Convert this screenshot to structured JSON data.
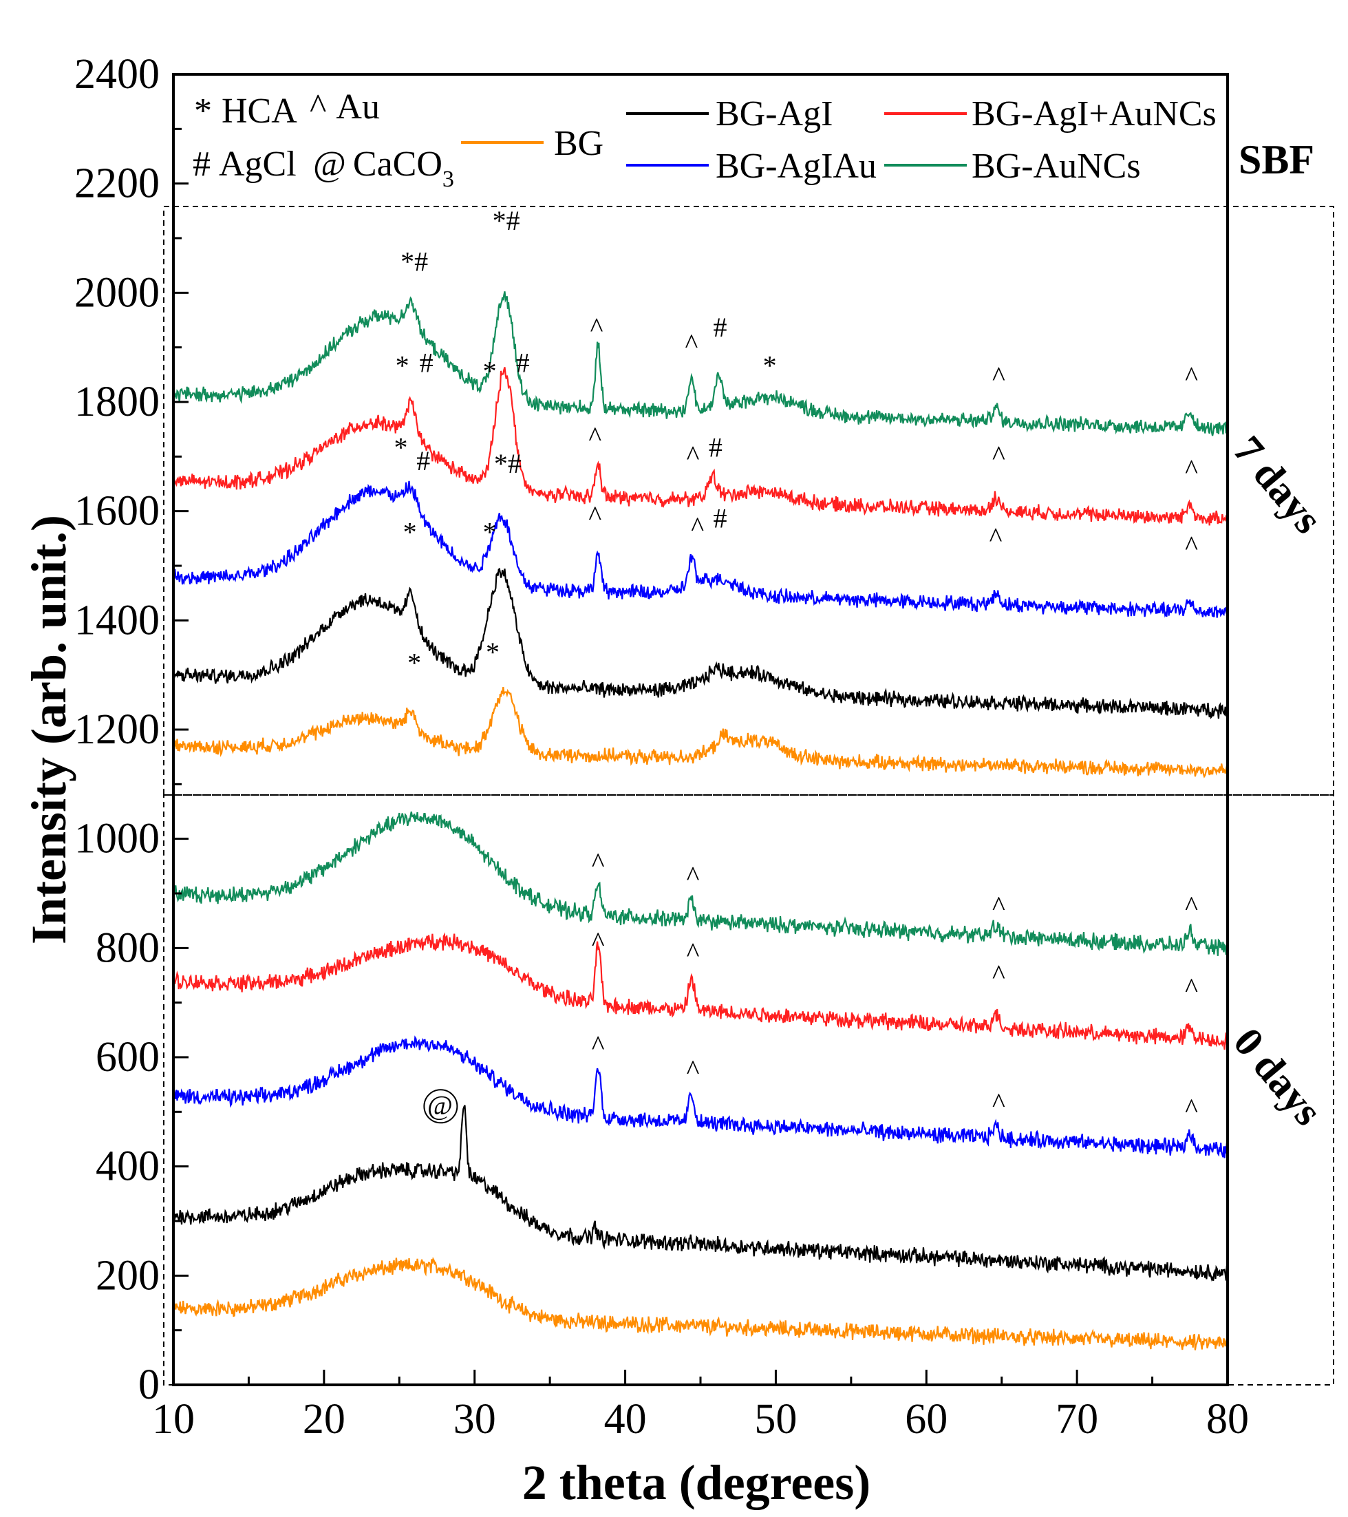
{
  "chart_data": {
    "type": "line",
    "title": "",
    "xlabel": "2 theta (degrees)",
    "ylabel": "Intensity (arb. unit.)",
    "xlim": [
      10,
      80
    ],
    "ylim": [
      0,
      2400
    ],
    "xticks": [
      "10",
      "20",
      "30",
      "40",
      "50",
      "60",
      "70",
      "80"
    ],
    "yticks": [
      "0",
      "200",
      "400",
      "600",
      "800",
      "1000",
      "1200",
      "1400",
      "1600",
      "1800",
      "2000",
      "2200",
      "2400"
    ],
    "grid": false,
    "corner_label": "SBF",
    "group_labels": [
      "7 days",
      "0 days"
    ],
    "legend_keys": [
      {
        "symbol": "*",
        "text": "HCA"
      },
      {
        "symbol": "^",
        "text": "Au"
      },
      {
        "symbol": "#",
        "text": "AgCl"
      },
      {
        "symbol": "@",
        "text": "CaCO",
        "subscript": "3"
      }
    ],
    "series": [
      {
        "name": "BG",
        "color": "#ff8c00",
        "group": "0 days",
        "baseline": 140,
        "end": 75,
        "humps": [
          [
            24,
            80,
            4.0
          ],
          [
            29,
            45,
            2.5
          ]
        ],
        "peaks": []
      },
      {
        "name": "BG-AgI",
        "color": "#000000",
        "group": "0 days",
        "baseline": 310,
        "end": 205,
        "humps": [
          [
            24,
            100,
            4.0
          ],
          [
            30,
            65,
            2.5
          ]
        ],
        "peaks": [
          [
            29.3,
            130,
            0.15
          ],
          [
            38.0,
            20,
            0.15
          ]
        ]
      },
      {
        "name": "BG-AgIAu",
        "color": "#0000ff",
        "group": "0 days",
        "baseline": 530,
        "end": 430,
        "humps": [
          [
            25,
            95,
            4.0
          ],
          [
            29,
            45,
            3.0
          ]
        ],
        "peaks": [
          [
            38.2,
            90,
            0.18
          ],
          [
            44.4,
            50,
            0.2
          ],
          [
            64.6,
            20,
            0.25
          ],
          [
            77.5,
            25,
            0.25
          ]
        ]
      },
      {
        "name": "BG-AgI+AuNCs",
        "color": "#ff2020",
        "group": "0 days",
        "baseline": 740,
        "end": 630,
        "humps": [
          [
            25,
            70,
            4.0
          ],
          [
            30,
            60,
            3.0
          ]
        ],
        "peaks": [
          [
            38.2,
            110,
            0.18
          ],
          [
            44.4,
            60,
            0.2
          ],
          [
            64.6,
            25,
            0.25
          ],
          [
            77.5,
            20,
            0.25
          ]
        ]
      },
      {
        "name": "BG-AuNCs",
        "color": "#118c5a",
        "group": "0 days",
        "baseline": 900,
        "end": 800,
        "humps": [
          [
            25,
            130,
            4.0
          ],
          [
            29,
            60,
            3.0
          ]
        ],
        "peaks": [
          [
            38.2,
            55,
            0.18
          ],
          [
            44.4,
            35,
            0.2
          ],
          [
            64.6,
            20,
            0.25
          ],
          [
            77.5,
            25,
            0.25
          ]
        ]
      },
      {
        "name": "BG",
        "color": "#ff8c00",
        "group": "7 days",
        "baseline": 1170,
        "end": 1125,
        "humps": [
          [
            23,
            60,
            3.0
          ],
          [
            48.5,
            35,
            2.0
          ]
        ],
        "peaks": [
          [
            25.8,
            35,
            0.35
          ],
          [
            32.0,
            115,
            0.8
          ],
          [
            46.5,
            20,
            0.4
          ]
        ]
      },
      {
        "name": "BG-AgI",
        "color": "#000000",
        "group": "7 days",
        "baseline": 1300,
        "end": 1235,
        "humps": [
          [
            23,
            150,
            3.2
          ],
          [
            48,
            40,
            2.5
          ]
        ],
        "peaks": [
          [
            25.8,
            60,
            0.35
          ],
          [
            31.8,
            205,
            0.9
          ],
          [
            46,
            15,
            0.5
          ]
        ]
      },
      {
        "name": "BG-AgIAu",
        "color": "#0000ff",
        "group": "7 days",
        "baseline": 1480,
        "end": 1415,
        "humps": [
          [
            23.5,
            170,
            3.5
          ],
          [
            46,
            30,
            1.5
          ]
        ],
        "peaks": [
          [
            25.8,
            40,
            0.4
          ],
          [
            31.8,
            120,
            0.7
          ],
          [
            38.2,
            70,
            0.18
          ],
          [
            44.4,
            50,
            0.2
          ],
          [
            64.6,
            20,
            0.25
          ],
          [
            77.5,
            15,
            0.25
          ]
        ]
      },
      {
        "name": "BG-AgI+AuNCs",
        "color": "#ff2020",
        "group": "7 days",
        "baseline": 1655,
        "end": 1585,
        "humps": [
          [
            23.5,
            120,
            3.5
          ],
          [
            49,
            20,
            2.0
          ]
        ],
        "peaks": [
          [
            25.8,
            60,
            0.35
          ],
          [
            32.0,
            220,
            0.6
          ],
          [
            38.2,
            60,
            0.18
          ],
          [
            45.8,
            40,
            0.3
          ],
          [
            64.6,
            25,
            0.25
          ],
          [
            77.5,
            25,
            0.25
          ]
        ]
      },
      {
        "name": "BG-AuNCs",
        "color": "#118c5a",
        "group": "7 days",
        "baseline": 1815,
        "end": 1750,
        "humps": [
          [
            24,
            155,
            3.5
          ],
          [
            49.5,
            30,
            2.0
          ]
        ],
        "peaks": [
          [
            25.8,
            50,
            0.35
          ],
          [
            32.0,
            190,
            0.6
          ],
          [
            38.2,
            110,
            0.18
          ],
          [
            44.4,
            60,
            0.2
          ],
          [
            46.2,
            60,
            0.25
          ],
          [
            64.6,
            25,
            0.25
          ],
          [
            77.5,
            30,
            0.25
          ]
        ]
      }
    ],
    "peak_markers": [
      {
        "text": "*#",
        "x": 26.0,
        "y": 2040
      },
      {
        "text": "*#",
        "x": 32.1,
        "y": 2115
      },
      {
        "text": "^",
        "x": 38.1,
        "y": 1920
      },
      {
        "text": "^",
        "x": 44.4,
        "y": 1890
      },
      {
        "text": "#",
        "x": 46.3,
        "y": 1920
      },
      {
        "text": "*",
        "x": 49.6,
        "y": 1850
      },
      {
        "text": "^",
        "x": 64.8,
        "y": 1830
      },
      {
        "text": "^",
        "x": 77.6,
        "y": 1830
      },
      {
        "text": "*",
        "x": 25.2,
        "y": 1850
      },
      {
        "text": "#",
        "x": 26.8,
        "y": 1855
      },
      {
        "text": "*",
        "x": 31.0,
        "y": 1840
      },
      {
        "text": "#",
        "x": 33.2,
        "y": 1855
      },
      {
        "text": "^",
        "x": 38.0,
        "y": 1720
      },
      {
        "text": "^",
        "x": 44.5,
        "y": 1685
      },
      {
        "text": "#",
        "x": 46.0,
        "y": 1700
      },
      {
        "text": "^",
        "x": 64.8,
        "y": 1685
      },
      {
        "text": "^",
        "x": 77.6,
        "y": 1660
      },
      {
        "text": "*",
        "x": 25.1,
        "y": 1700
      },
      {
        "text": "#",
        "x": 26.6,
        "y": 1675
      },
      {
        "text": "*#",
        "x": 32.2,
        "y": 1670
      },
      {
        "text": "^",
        "x": 38.0,
        "y": 1575
      },
      {
        "text": "^",
        "x": 44.8,
        "y": 1555
      },
      {
        "text": "#",
        "x": 46.3,
        "y": 1570
      },
      {
        "text": "^",
        "x": 64.6,
        "y": 1535
      },
      {
        "text": "^",
        "x": 77.6,
        "y": 1520
      },
      {
        "text": "*",
        "x": 25.7,
        "y": 1545
      },
      {
        "text": "*",
        "x": 31.0,
        "y": 1545
      },
      {
        "text": "*",
        "x": 26.0,
        "y": 1305
      },
      {
        "text": "*",
        "x": 31.2,
        "y": 1325
      },
      {
        "text": "^",
        "x": 38.2,
        "y": 940
      },
      {
        "text": "^",
        "x": 44.5,
        "y": 915
      },
      {
        "text": "^",
        "x": 64.8,
        "y": 860
      },
      {
        "text": "^",
        "x": 77.6,
        "y": 860
      },
      {
        "text": "^",
        "x": 38.2,
        "y": 795
      },
      {
        "text": "^",
        "x": 44.5,
        "y": 775
      },
      {
        "text": "^",
        "x": 64.8,
        "y": 735
      },
      {
        "text": "^",
        "x": 77.6,
        "y": 710
      },
      {
        "text": "^",
        "x": 38.2,
        "y": 605
      },
      {
        "text": "^",
        "x": 44.5,
        "y": 560
      },
      {
        "text": "^",
        "x": 64.8,
        "y": 500
      },
      {
        "text": "^",
        "x": 77.6,
        "y": 490
      },
      {
        "text": "@",
        "x": 27.7,
        "y": 495
      }
    ]
  }
}
